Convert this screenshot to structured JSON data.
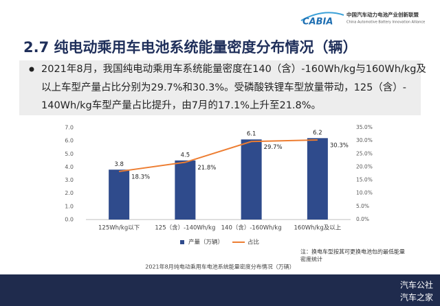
{
  "header": {
    "logo": "CABIA",
    "org_name": "中国汽车动力电池产业创新联盟",
    "org_name_en": "China Automotive Battery Innovation Alliance"
  },
  "slide": {
    "title": "2.7  纯电动乘用车电池系统能量密度分布情况（辆）",
    "bullet_lines": [
      "2021年8月，我国纯电动乘用车系统能量密度在140（含）-160Wh/kg与160Wh/kg及",
      "以上车型产量占比分别为29.7%和30.3%。受磷酸铁锂车型放量带动，125（含）-",
      "140Wh/kg车型产量占比提升，由7月的17.1%上升至21.8%。"
    ],
    "note_lines": [
      "注：换电车型按其可更换电池包的最低能量",
      "密度统计"
    ],
    "watermark": [
      "汽车公社",
      "汽车之家"
    ]
  },
  "chart_data": {
    "type": "bar_line",
    "title": "2021年8月纯电动乘用车电池系统能量密度分布情况（万辆）",
    "categories": [
      "125Wh/kg以下",
      "125（含）-140Wh/kg",
      "140（含）-160Wh/kg",
      "160Wh/kg及以上"
    ],
    "series": [
      {
        "name": "产量（万辆）",
        "type": "bar",
        "color": "#2f4b8c",
        "values": [
          3.8,
          4.5,
          6.1,
          6.2
        ]
      },
      {
        "name": "占比",
        "type": "line",
        "axis": "y2",
        "color": "#ed7d31",
        "values": [
          18.3,
          21.8,
          29.7,
          30.3
        ],
        "value_labels": [
          "18.3%",
          "21.8%",
          "29.7%",
          "30.3%"
        ]
      }
    ],
    "ylim": [
      0,
      7
    ],
    "yticks": [
      {
        "value": 0,
        "label": "0.0"
      },
      {
        "value": 1,
        "label": "1.0"
      },
      {
        "value": 2,
        "label": "2.0"
      },
      {
        "value": 3,
        "label": "3.0"
      },
      {
        "value": 4,
        "label": "4.0"
      },
      {
        "value": 5,
        "label": "5.0"
      },
      {
        "value": 6,
        "label": "6.0"
      },
      {
        "value": 7,
        "label": "7.0"
      }
    ],
    "y2lim": [
      0,
      35
    ],
    "y2ticks": [
      {
        "value": 0,
        "label": "0.0%"
      },
      {
        "value": 5,
        "label": "5.0%"
      },
      {
        "value": 10,
        "label": "10.0%"
      },
      {
        "value": 15,
        "label": "15.0%"
      },
      {
        "value": 20,
        "label": "20.0%"
      },
      {
        "value": 25,
        "label": "25.0%"
      },
      {
        "value": 30,
        "label": "30.0%"
      },
      {
        "value": 35,
        "label": "35.0%"
      }
    ]
  }
}
